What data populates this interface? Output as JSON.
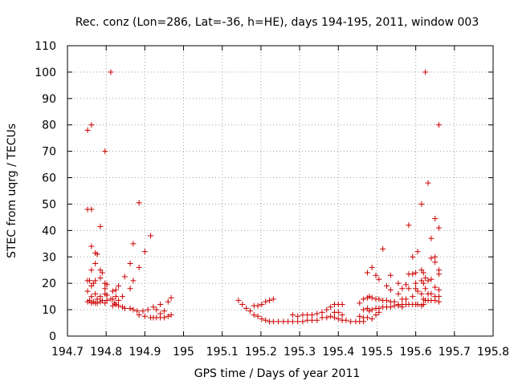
{
  "chart_data": {
    "type": "scatter",
    "title": "Rec. conz (Lon=286, Lat=-36, h=HE), days 194-195, 2011, window 003",
    "xlabel": "GPS time / Days of year 2011",
    "ylabel": "STEC from uqrg / TECUs",
    "xlim": [
      194.7,
      195.8
    ],
    "ylim": [
      0,
      110
    ],
    "x_ticks": [
      194.7,
      194.8,
      194.9,
      195.0,
      195.1,
      195.2,
      195.3,
      195.4,
      195.5,
      195.6,
      195.7,
      195.8
    ],
    "x_tick_labels": [
      "194.7",
      "194.8",
      "194.9",
      "195",
      "195.1",
      "195.2",
      "195.3",
      "195.4",
      "195.5",
      "195.6",
      "195.7",
      "195.8"
    ],
    "y_ticks": [
      0,
      10,
      20,
      30,
      40,
      50,
      60,
      70,
      80,
      90,
      100,
      110
    ],
    "y_tick_labels": [
      "0",
      "10",
      "20",
      "30",
      "40",
      "50",
      "60",
      "70",
      "80",
      "90",
      "100",
      "110"
    ],
    "grid": true,
    "marker": "plus",
    "series": [
      {
        "name": "STEC",
        "color": "#cc0000",
        "points": [
          [
            194.752,
            78
          ],
          [
            194.752,
            48
          ],
          [
            194.752,
            21
          ],
          [
            194.752,
            17
          ],
          [
            194.752,
            13
          ],
          [
            194.757,
            21
          ],
          [
            194.757,
            13.5
          ],
          [
            194.762,
            80
          ],
          [
            194.762,
            48
          ],
          [
            194.762,
            34
          ],
          [
            194.762,
            25
          ],
          [
            194.762,
            19
          ],
          [
            194.762,
            15
          ],
          [
            194.762,
            12.5
          ],
          [
            194.767,
            20
          ],
          [
            194.767,
            13
          ],
          [
            194.772,
            31.5
          ],
          [
            194.772,
            27.5
          ],
          [
            194.772,
            21
          ],
          [
            194.772,
            16
          ],
          [
            194.772,
            12.5
          ],
          [
            194.777,
            31
          ],
          [
            194.777,
            14
          ],
          [
            194.777,
            12.5
          ],
          [
            194.785,
            41.5
          ],
          [
            194.785,
            25
          ],
          [
            194.785,
            22
          ],
          [
            194.785,
            15
          ],
          [
            194.785,
            13
          ],
          [
            194.79,
            24
          ],
          [
            194.79,
            13.5
          ],
          [
            194.797,
            70
          ],
          [
            194.797,
            20
          ],
          [
            194.797,
            18
          ],
          [
            194.797,
            16
          ],
          [
            194.797,
            12.5
          ],
          [
            194.802,
            19.5
          ],
          [
            194.802,
            15.5
          ],
          [
            194.802,
            13.5
          ],
          [
            194.812,
            100
          ],
          [
            194.812,
            14
          ],
          [
            194.817,
            17
          ],
          [
            194.817,
            14
          ],
          [
            194.817,
            11.5
          ],
          [
            194.822,
            12.5
          ],
          [
            194.825,
            17.5
          ],
          [
            194.825,
            15
          ],
          [
            194.825,
            12
          ],
          [
            194.832,
            19
          ],
          [
            194.832,
            13.5
          ],
          [
            194.832,
            11.5
          ],
          [
            194.842,
            15
          ],
          [
            194.842,
            11
          ],
          [
            194.848,
            22.5
          ],
          [
            194.848,
            10.5
          ],
          [
            194.862,
            27.5
          ],
          [
            194.862,
            18
          ],
          [
            194.862,
            10.5
          ],
          [
            194.87,
            35
          ],
          [
            194.87,
            21
          ],
          [
            194.87,
            10
          ],
          [
            194.88,
            9.5
          ],
          [
            194.885,
            50.5
          ],
          [
            194.885,
            26
          ],
          [
            194.885,
            8
          ],
          [
            194.895,
            9.5
          ],
          [
            194.9,
            32
          ],
          [
            194.9,
            7.5
          ],
          [
            194.908,
            10
          ],
          [
            194.915,
            38
          ],
          [
            194.915,
            7
          ],
          [
            194.922,
            11
          ],
          [
            194.922,
            7
          ],
          [
            194.93,
            10
          ],
          [
            194.93,
            7
          ],
          [
            194.94,
            12
          ],
          [
            194.94,
            8.5
          ],
          [
            194.94,
            7
          ],
          [
            194.95,
            9.5
          ],
          [
            194.95,
            7
          ],
          [
            194.96,
            13
          ],
          [
            194.96,
            7.5
          ],
          [
            194.968,
            14.5
          ],
          [
            194.968,
            8
          ],
          [
            195.142,
            13.5
          ],
          [
            195.152,
            12
          ],
          [
            195.162,
            10.5
          ],
          [
            195.172,
            9.5
          ],
          [
            195.182,
            11.5
          ],
          [
            195.182,
            8
          ],
          [
            195.192,
            11.5
          ],
          [
            195.192,
            7.5
          ],
          [
            195.202,
            12
          ],
          [
            195.202,
            6.5
          ],
          [
            195.212,
            13
          ],
          [
            195.212,
            6
          ],
          [
            195.222,
            13.5
          ],
          [
            195.222,
            5.5
          ],
          [
            195.232,
            14
          ],
          [
            195.232,
            5.5
          ],
          [
            195.245,
            5.5
          ],
          [
            195.258,
            5.5
          ],
          [
            195.27,
            5.5
          ],
          [
            195.282,
            8
          ],
          [
            195.282,
            5.5
          ],
          [
            195.295,
            7.5
          ],
          [
            195.295,
            5.5
          ],
          [
            195.308,
            8
          ],
          [
            195.308,
            5.5
          ],
          [
            195.32,
            8
          ],
          [
            195.32,
            6
          ],
          [
            195.332,
            8
          ],
          [
            195.332,
            6
          ],
          [
            195.345,
            8.5
          ],
          [
            195.345,
            6
          ],
          [
            195.358,
            9
          ],
          [
            195.358,
            7
          ],
          [
            195.37,
            10
          ],
          [
            195.37,
            7
          ],
          [
            195.38,
            11
          ],
          [
            195.38,
            7.5
          ],
          [
            195.39,
            12
          ],
          [
            195.39,
            9
          ],
          [
            195.39,
            7
          ],
          [
            195.4,
            12
          ],
          [
            195.4,
            9
          ],
          [
            195.4,
            6.5
          ],
          [
            195.41,
            12
          ],
          [
            195.41,
            8
          ],
          [
            195.41,
            6
          ],
          [
            195.42,
            6
          ],
          [
            195.432,
            5.5
          ],
          [
            195.445,
            5.5
          ],
          [
            195.455,
            12.5
          ],
          [
            195.455,
            7.5
          ],
          [
            195.455,
            5.5
          ],
          [
            195.465,
            14
          ],
          [
            195.465,
            10
          ],
          [
            195.465,
            7
          ],
          [
            195.465,
            5.5
          ],
          [
            195.475,
            24
          ],
          [
            195.475,
            14.5
          ],
          [
            195.475,
            10.5
          ],
          [
            195.475,
            7
          ],
          [
            195.48,
            15
          ],
          [
            195.48,
            9.5
          ],
          [
            195.487,
            26
          ],
          [
            195.487,
            14.5
          ],
          [
            195.487,
            10
          ],
          [
            195.487,
            6.5
          ],
          [
            195.497,
            23
          ],
          [
            195.497,
            14
          ],
          [
            195.497,
            10.5
          ],
          [
            195.497,
            8
          ],
          [
            195.505,
            21.5
          ],
          [
            195.505,
            14
          ],
          [
            195.505,
            10.5
          ],
          [
            195.505,
            9
          ],
          [
            195.515,
            33
          ],
          [
            195.515,
            13.5
          ],
          [
            195.515,
            11
          ],
          [
            195.525,
            19
          ],
          [
            195.525,
            13.5
          ],
          [
            195.525,
            11
          ],
          [
            195.535,
            23
          ],
          [
            195.535,
            17.5
          ],
          [
            195.535,
            13
          ],
          [
            195.535,
            11
          ],
          [
            195.545,
            13
          ],
          [
            195.545,
            11.5
          ],
          [
            195.555,
            20
          ],
          [
            195.555,
            16
          ],
          [
            195.555,
            12
          ],
          [
            195.555,
            11.5
          ],
          [
            195.565,
            18
          ],
          [
            195.565,
            14
          ],
          [
            195.565,
            12
          ],
          [
            195.565,
            11
          ],
          [
            195.575,
            19.5
          ],
          [
            195.575,
            14
          ],
          [
            195.575,
            12
          ],
          [
            195.582,
            42
          ],
          [
            195.582,
            23.5
          ],
          [
            195.582,
            18
          ],
          [
            195.582,
            12
          ],
          [
            195.592,
            30
          ],
          [
            195.592,
            23.5
          ],
          [
            195.592,
            15
          ],
          [
            195.592,
            12
          ],
          [
            195.6,
            24
          ],
          [
            195.6,
            20
          ],
          [
            195.6,
            18
          ],
          [
            195.6,
            12
          ],
          [
            195.605,
            32
          ],
          [
            195.605,
            17
          ],
          [
            195.605,
            12
          ],
          [
            195.615,
            50
          ],
          [
            195.615,
            25
          ],
          [
            195.615,
            21
          ],
          [
            195.615,
            16
          ],
          [
            195.615,
            11.5
          ],
          [
            195.62,
            24
          ],
          [
            195.62,
            20
          ],
          [
            195.62,
            14
          ],
          [
            195.62,
            12
          ],
          [
            195.625,
            100
          ],
          [
            195.625,
            22
          ],
          [
            195.625,
            18
          ],
          [
            195.625,
            13.5
          ],
          [
            195.632,
            58
          ],
          [
            195.632,
            21
          ],
          [
            195.632,
            16
          ],
          [
            195.632,
            13.5
          ],
          [
            195.64,
            37
          ],
          [
            195.64,
            29.5
          ],
          [
            195.64,
            21.5
          ],
          [
            195.64,
            16
          ],
          [
            195.64,
            13.5
          ],
          [
            195.65,
            44.5
          ],
          [
            195.65,
            30
          ],
          [
            195.65,
            28
          ],
          [
            195.65,
            18.5
          ],
          [
            195.65,
            15
          ],
          [
            195.65,
            13.5
          ],
          [
            195.66,
            80
          ],
          [
            195.66,
            41
          ],
          [
            195.66,
            25
          ],
          [
            195.66,
            23.5
          ],
          [
            195.66,
            17.5
          ],
          [
            195.66,
            15
          ],
          [
            195.66,
            13
          ]
        ]
      }
    ]
  }
}
